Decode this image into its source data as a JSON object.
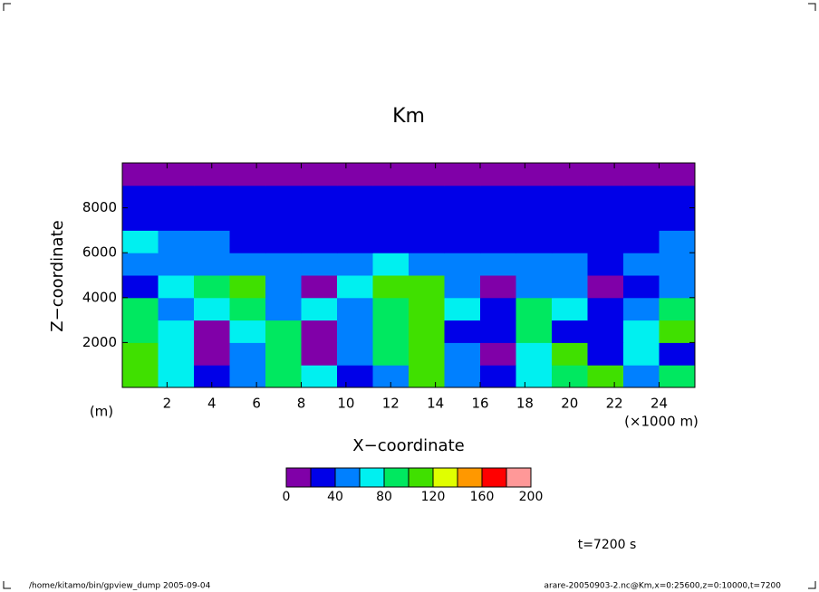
{
  "chart_data": {
    "type": "contour",
    "title": "Km",
    "x_label": "X−coordinate",
    "y_label": "Z−coordinate",
    "y_unit": "(m)",
    "x_unit": "(×1000 m)",
    "time_label": "t=7200 s",
    "footer_left": "/home/kitamo/bin/gpview_dump  2005-09-04",
    "footer_right": "arare-20050903-2.nc@Km,x=0:25600,z=0:10000,t=7200",
    "xlim": [
      0,
      25.6
    ],
    "ylim": [
      0,
      10000
    ],
    "xticks": [
      2,
      4,
      6,
      8,
      10,
      12,
      14,
      16,
      18,
      20,
      22,
      24
    ],
    "yticks": [
      2000,
      4000,
      6000,
      8000
    ],
    "x": [
      0.8,
      2.4,
      4.0,
      5.6,
      7.2,
      8.8,
      10.4,
      12.0,
      13.6,
      15.2,
      16.8,
      18.4,
      20.0,
      21.6,
      23.2,
      24.8
    ],
    "y": [
      500,
      1500,
      2500,
      3500,
      4500,
      5500,
      6500,
      7500,
      8500,
      9500
    ],
    "z": [
      [
        110,
        70,
        30,
        50,
        90,
        70,
        30,
        50,
        110,
        40,
        30,
        60,
        90,
        110,
        40,
        90
      ],
      [
        100,
        60,
        10,
        50,
        80,
        10,
        50,
        90,
        110,
        40,
        10,
        70,
        100,
        30,
        60,
        30
      ],
      [
        90,
        70,
        10,
        60,
        80,
        10,
        40,
        90,
        100,
        30,
        20,
        80,
        30,
        30,
        70,
        100
      ],
      [
        90,
        50,
        60,
        80,
        40,
        70,
        50,
        90,
        110,
        60,
        30,
        90,
        60,
        30,
        50,
        90
      ],
      [
        30,
        60,
        80,
        100,
        50,
        10,
        70,
        110,
        110,
        50,
        10,
        50,
        40,
        10,
        30,
        40
      ],
      [
        50,
        50,
        40,
        50,
        40,
        50,
        50,
        60,
        50,
        50,
        40,
        50,
        40,
        30,
        50,
        50
      ],
      [
        60,
        50,
        40,
        30,
        30,
        30,
        30,
        30,
        30,
        30,
        30,
        30,
        30,
        30,
        30,
        40
      ],
      [
        30,
        30,
        30,
        30,
        30,
        30,
        30,
        30,
        30,
        30,
        30,
        30,
        30,
        30,
        30,
        30
      ],
      [
        30,
        30,
        30,
        30,
        30,
        30,
        30,
        30,
        30,
        30,
        30,
        30,
        30,
        30,
        30,
        30
      ],
      [
        10,
        10,
        15,
        15,
        10,
        10,
        10,
        10,
        10,
        10,
        15,
        15,
        10,
        10,
        10,
        10
      ]
    ],
    "levels": [
      0,
      20,
      40,
      60,
      80,
      100,
      120,
      140,
      160,
      180,
      200
    ],
    "level_colors": [
      "#8000a8",
      "#0000e8",
      "#0080ff",
      "#00f0f0",
      "#00e860",
      "#40e000",
      "#e0ff00",
      "#ff9800",
      "#ff0000",
      "#ff9898"
    ],
    "level_ticks": [
      0,
      40,
      80,
      120,
      160,
      200
    ]
  }
}
